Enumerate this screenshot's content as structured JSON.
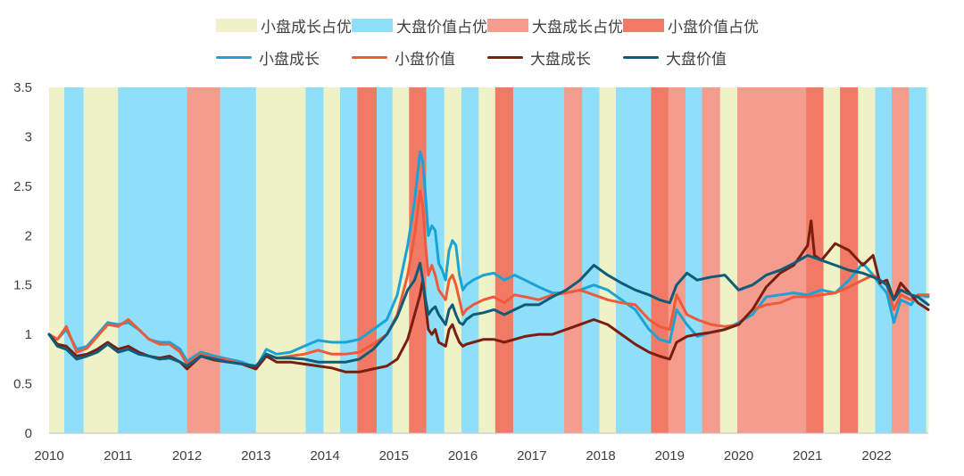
{
  "chart_data": {
    "type": "line",
    "x_start": 2010,
    "x_end": 2022.75,
    "ylim": [
      0,
      3.5
    ],
    "yticks": [
      "0",
      "0.5",
      "1",
      "1.5",
      "2",
      "2.5",
      "3",
      "3.5"
    ],
    "xticks": [
      "2010",
      "2011",
      "2012",
      "2013",
      "2014",
      "2015",
      "2016",
      "2017",
      "2018",
      "2019",
      "2020",
      "2021",
      "2022"
    ],
    "regime_legend": [
      {
        "key": "sg",
        "label": "小盘成长占优",
        "color": "#EEF2C6"
      },
      {
        "key": "lv",
        "label": "大盘价值占优",
        "color": "#8FDFFA"
      },
      {
        "key": "lg",
        "label": "大盘成长占优",
        "color": "#F49C8D"
      },
      {
        "key": "sv",
        "label": "小盘价值占优",
        "color": "#F07A66"
      }
    ],
    "regimes": [
      {
        "start": 2010.0,
        "end": 2010.22,
        "type": "sg"
      },
      {
        "start": 2010.22,
        "end": 2010.5,
        "type": "lv"
      },
      {
        "start": 2010.5,
        "end": 2011.0,
        "type": "sg"
      },
      {
        "start": 2011.0,
        "end": 2012.0,
        "type": "lv"
      },
      {
        "start": 2012.0,
        "end": 2012.48,
        "type": "lg"
      },
      {
        "start": 2012.48,
        "end": 2013.0,
        "type": "lv"
      },
      {
        "start": 2013.0,
        "end": 2013.72,
        "type": "sg"
      },
      {
        "start": 2013.72,
        "end": 2013.98,
        "type": "lv"
      },
      {
        "start": 2013.98,
        "end": 2014.22,
        "type": "sg"
      },
      {
        "start": 2014.22,
        "end": 2014.47,
        "type": "lv"
      },
      {
        "start": 2014.47,
        "end": 2014.75,
        "type": "sv"
      },
      {
        "start": 2014.75,
        "end": 2014.98,
        "type": "lv"
      },
      {
        "start": 2014.98,
        "end": 2015.22,
        "type": "sg"
      },
      {
        "start": 2015.22,
        "end": 2015.47,
        "type": "sv"
      },
      {
        "start": 2015.47,
        "end": 2015.73,
        "type": "lv"
      },
      {
        "start": 2015.73,
        "end": 2015.98,
        "type": "sg"
      },
      {
        "start": 2015.98,
        "end": 2016.23,
        "type": "lv"
      },
      {
        "start": 2016.23,
        "end": 2016.47,
        "type": "sg"
      },
      {
        "start": 2016.47,
        "end": 2016.73,
        "type": "sv"
      },
      {
        "start": 2016.73,
        "end": 2017.47,
        "type": "lv"
      },
      {
        "start": 2017.47,
        "end": 2017.73,
        "type": "lg"
      },
      {
        "start": 2017.73,
        "end": 2017.98,
        "type": "lv"
      },
      {
        "start": 2017.98,
        "end": 2018.22,
        "type": "sg"
      },
      {
        "start": 2018.22,
        "end": 2018.73,
        "type": "lv"
      },
      {
        "start": 2018.73,
        "end": 2018.98,
        "type": "sv"
      },
      {
        "start": 2018.98,
        "end": 2019.23,
        "type": "lg"
      },
      {
        "start": 2019.23,
        "end": 2019.47,
        "type": "lv"
      },
      {
        "start": 2019.47,
        "end": 2019.73,
        "type": "lg"
      },
      {
        "start": 2019.73,
        "end": 2019.98,
        "type": "sg"
      },
      {
        "start": 2019.98,
        "end": 2020.98,
        "type": "lg"
      },
      {
        "start": 2020.98,
        "end": 2021.23,
        "type": "sv"
      },
      {
        "start": 2021.23,
        "end": 2021.47,
        "type": "sg"
      },
      {
        "start": 2021.47,
        "end": 2021.73,
        "type": "sv"
      },
      {
        "start": 2021.73,
        "end": 2021.98,
        "type": "sg"
      },
      {
        "start": 2021.98,
        "end": 2022.22,
        "type": "lv"
      },
      {
        "start": 2022.22,
        "end": 2022.47,
        "type": "lg"
      },
      {
        "start": 2022.47,
        "end": 2022.72,
        "type": "lv"
      },
      {
        "start": 2022.72,
        "end": 2022.75,
        "type": "sg"
      }
    ],
    "series": [
      {
        "name": "小盘成长",
        "color": "#1BA3D6",
        "x": [
          2010,
          2010.12,
          2010.25,
          2010.4,
          2010.55,
          2010.7,
          2010.85,
          2011,
          2011.15,
          2011.3,
          2011.45,
          2011.6,
          2011.75,
          2011.9,
          2012,
          2012.2,
          2012.4,
          2012.6,
          2012.8,
          2013,
          2013.15,
          2013.3,
          2013.5,
          2013.7,
          2013.9,
          2014.1,
          2014.3,
          2014.5,
          2014.7,
          2014.9,
          2015.05,
          2015.2,
          2015.3,
          2015.38,
          2015.42,
          2015.46,
          2015.5,
          2015.55,
          2015.6,
          2015.65,
          2015.7,
          2015.75,
          2015.8,
          2015.85,
          2015.9,
          2015.95,
          2016,
          2016.05,
          2016.15,
          2016.3,
          2016.45,
          2016.6,
          2016.75,
          2016.9,
          2017.1,
          2017.3,
          2017.5,
          2017.7,
          2017.9,
          2018.1,
          2018.3,
          2018.5,
          2018.7,
          2018.85,
          2019,
          2019.1,
          2019.25,
          2019.4,
          2019.6,
          2019.8,
          2020,
          2020.2,
          2020.4,
          2020.6,
          2020.8,
          2021,
          2021.2,
          2021.4,
          2021.6,
          2021.8,
          2021.95,
          2022.05,
          2022.15,
          2022.25,
          2022.35,
          2022.5,
          2022.6,
          2022.75
        ],
        "y": [
          1.0,
          0.95,
          1.05,
          0.85,
          0.88,
          1.0,
          1.12,
          1.1,
          1.12,
          1.05,
          0.95,
          0.92,
          0.92,
          0.85,
          0.73,
          0.82,
          0.78,
          0.75,
          0.72,
          0.66,
          0.85,
          0.8,
          0.82,
          0.88,
          0.94,
          0.92,
          0.92,
          0.95,
          1.05,
          1.15,
          1.4,
          1.9,
          2.35,
          2.85,
          2.75,
          2.4,
          2.0,
          2.1,
          2.05,
          1.72,
          1.65,
          1.55,
          1.85,
          1.95,
          1.9,
          1.6,
          1.45,
          1.5,
          1.55,
          1.6,
          1.62,
          1.55,
          1.6,
          1.55,
          1.48,
          1.42,
          1.42,
          1.45,
          1.5,
          1.45,
          1.35,
          1.25,
          1.05,
          0.95,
          0.92,
          1.25,
          1.1,
          0.98,
          1.02,
          1.05,
          1.12,
          1.2,
          1.38,
          1.4,
          1.42,
          1.4,
          1.45,
          1.42,
          1.55,
          1.72,
          1.6,
          1.5,
          1.42,
          1.12,
          1.35,
          1.3,
          1.4,
          1.38
        ]
      },
      {
        "name": "小盘价值",
        "color": "#EE5A3A",
        "x": [
          2010,
          2010.12,
          2010.25,
          2010.4,
          2010.55,
          2010.7,
          2010.85,
          2011,
          2011.15,
          2011.3,
          2011.45,
          2011.6,
          2011.75,
          2011.9,
          2012,
          2012.2,
          2012.4,
          2012.6,
          2012.8,
          2013,
          2013.15,
          2013.3,
          2013.5,
          2013.7,
          2013.9,
          2014.1,
          2014.3,
          2014.5,
          2014.7,
          2014.9,
          2015.05,
          2015.2,
          2015.3,
          2015.38,
          2015.42,
          2015.46,
          2015.5,
          2015.55,
          2015.6,
          2015.65,
          2015.7,
          2015.75,
          2015.8,
          2015.85,
          2015.9,
          2015.95,
          2016,
          2016.05,
          2016.15,
          2016.3,
          2016.45,
          2016.6,
          2016.75,
          2016.9,
          2017.1,
          2017.3,
          2017.5,
          2017.7,
          2017.9,
          2018.1,
          2018.3,
          2018.5,
          2018.7,
          2018.85,
          2019,
          2019.1,
          2019.25,
          2019.4,
          2019.6,
          2019.8,
          2020,
          2020.2,
          2020.4,
          2020.6,
          2020.8,
          2021,
          2021.2,
          2021.4,
          2021.6,
          2021.8,
          2021.95,
          2022.05,
          2022.15,
          2022.25,
          2022.35,
          2022.5,
          2022.6,
          2022.75
        ],
        "y": [
          1.0,
          0.95,
          1.08,
          0.82,
          0.86,
          0.98,
          1.1,
          1.08,
          1.15,
          1.05,
          0.95,
          0.9,
          0.9,
          0.82,
          0.7,
          0.8,
          0.76,
          0.74,
          0.7,
          0.65,
          0.8,
          0.76,
          0.78,
          0.8,
          0.84,
          0.8,
          0.8,
          0.82,
          0.9,
          1.0,
          1.2,
          1.6,
          2.0,
          2.45,
          2.3,
          1.9,
          1.6,
          1.7,
          1.6,
          1.45,
          1.4,
          1.35,
          1.55,
          1.6,
          1.5,
          1.35,
          1.2,
          1.25,
          1.3,
          1.35,
          1.38,
          1.32,
          1.4,
          1.38,
          1.35,
          1.4,
          1.42,
          1.45,
          1.4,
          1.35,
          1.32,
          1.3,
          1.15,
          1.08,
          1.05,
          1.4,
          1.2,
          1.15,
          1.1,
          1.08,
          1.1,
          1.25,
          1.3,
          1.32,
          1.38,
          1.38,
          1.4,
          1.42,
          1.48,
          1.55,
          1.6,
          1.55,
          1.5,
          1.25,
          1.4,
          1.35,
          1.4,
          1.4
        ]
      },
      {
        "name": "大盘成长",
        "color": "#7A1E10",
        "x": [
          2010,
          2010.12,
          2010.25,
          2010.4,
          2010.55,
          2010.7,
          2010.85,
          2011,
          2011.15,
          2011.3,
          2011.45,
          2011.6,
          2011.75,
          2011.9,
          2012,
          2012.2,
          2012.4,
          2012.6,
          2012.8,
          2013,
          2013.15,
          2013.3,
          2013.5,
          2013.7,
          2013.9,
          2014.1,
          2014.3,
          2014.5,
          2014.7,
          2014.9,
          2015.05,
          2015.2,
          2015.3,
          2015.38,
          2015.42,
          2015.46,
          2015.5,
          2015.55,
          2015.6,
          2015.65,
          2015.7,
          2015.75,
          2015.8,
          2015.85,
          2015.9,
          2015.95,
          2016,
          2016.05,
          2016.15,
          2016.3,
          2016.45,
          2016.6,
          2016.75,
          2016.9,
          2017.1,
          2017.3,
          2017.5,
          2017.7,
          2017.9,
          2018.1,
          2018.3,
          2018.5,
          2018.7,
          2018.85,
          2019,
          2019.1,
          2019.25,
          2019.4,
          2019.6,
          2019.8,
          2020,
          2020.2,
          2020.4,
          2020.6,
          2020.8,
          2021,
          2021.05,
          2021.1,
          2021.2,
          2021.4,
          2021.6,
          2021.8,
          2021.95,
          2022.05,
          2022.15,
          2022.25,
          2022.35,
          2022.5,
          2022.6,
          2022.75
        ],
        "y": [
          1.0,
          0.9,
          0.88,
          0.78,
          0.8,
          0.85,
          0.92,
          0.85,
          0.88,
          0.82,
          0.78,
          0.76,
          0.78,
          0.72,
          0.65,
          0.78,
          0.74,
          0.72,
          0.7,
          0.65,
          0.78,
          0.72,
          0.72,
          0.7,
          0.68,
          0.66,
          0.62,
          0.62,
          0.65,
          0.68,
          0.75,
          0.95,
          1.2,
          1.4,
          1.55,
          1.3,
          1.05,
          1.0,
          1.05,
          0.92,
          0.9,
          0.88,
          1.05,
          1.1,
          1.0,
          0.92,
          0.88,
          0.9,
          0.92,
          0.95,
          0.95,
          0.92,
          0.95,
          0.98,
          1.0,
          1.0,
          1.05,
          1.1,
          1.15,
          1.1,
          1.0,
          0.9,
          0.82,
          0.78,
          0.75,
          0.92,
          0.98,
          1.0,
          1.02,
          1.05,
          1.1,
          1.25,
          1.48,
          1.62,
          1.7,
          1.9,
          2.15,
          1.8,
          1.75,
          1.92,
          1.85,
          1.7,
          1.8,
          1.52,
          1.55,
          1.35,
          1.52,
          1.4,
          1.32,
          1.25
        ]
      },
      {
        "name": "大盘价值",
        "color": "#0E5C7A",
        "x": [
          2010,
          2010.12,
          2010.25,
          2010.4,
          2010.55,
          2010.7,
          2010.85,
          2011,
          2011.15,
          2011.3,
          2011.45,
          2011.6,
          2011.75,
          2011.9,
          2012,
          2012.2,
          2012.4,
          2012.6,
          2012.8,
          2013,
          2013.15,
          2013.3,
          2013.5,
          2013.7,
          2013.9,
          2014.1,
          2014.3,
          2014.5,
          2014.7,
          2014.9,
          2015.05,
          2015.2,
          2015.3,
          2015.38,
          2015.42,
          2015.46,
          2015.5,
          2015.55,
          2015.6,
          2015.65,
          2015.7,
          2015.75,
          2015.8,
          2015.85,
          2015.9,
          2015.95,
          2016,
          2016.05,
          2016.15,
          2016.3,
          2016.45,
          2016.6,
          2016.75,
          2016.9,
          2017.1,
          2017.3,
          2017.5,
          2017.7,
          2017.9,
          2018.1,
          2018.3,
          2018.5,
          2018.7,
          2018.85,
          2019,
          2019.1,
          2019.25,
          2019.4,
          2019.6,
          2019.8,
          2020,
          2020.2,
          2020.4,
          2020.6,
          2020.8,
          2021,
          2021.2,
          2021.4,
          2021.6,
          2021.8,
          2021.95,
          2022.05,
          2022.15,
          2022.25,
          2022.35,
          2022.5,
          2022.6,
          2022.75
        ],
        "y": [
          1.0,
          0.88,
          0.85,
          0.75,
          0.78,
          0.82,
          0.9,
          0.82,
          0.85,
          0.8,
          0.78,
          0.75,
          0.76,
          0.72,
          0.68,
          0.78,
          0.75,
          0.72,
          0.7,
          0.68,
          0.8,
          0.76,
          0.76,
          0.75,
          0.72,
          0.72,
          0.72,
          0.75,
          0.85,
          1.0,
          1.18,
          1.45,
          1.55,
          1.72,
          1.55,
          1.35,
          1.2,
          1.25,
          1.28,
          1.2,
          1.15,
          1.1,
          1.25,
          1.3,
          1.2,
          1.12,
          1.1,
          1.15,
          1.2,
          1.22,
          1.25,
          1.2,
          1.25,
          1.3,
          1.3,
          1.38,
          1.45,
          1.55,
          1.7,
          1.6,
          1.52,
          1.45,
          1.4,
          1.35,
          1.32,
          1.5,
          1.62,
          1.55,
          1.58,
          1.6,
          1.45,
          1.5,
          1.6,
          1.65,
          1.72,
          1.8,
          1.75,
          1.7,
          1.65,
          1.62,
          1.58,
          1.55,
          1.5,
          1.35,
          1.45,
          1.4,
          1.38,
          1.3
        ]
      }
    ]
  }
}
